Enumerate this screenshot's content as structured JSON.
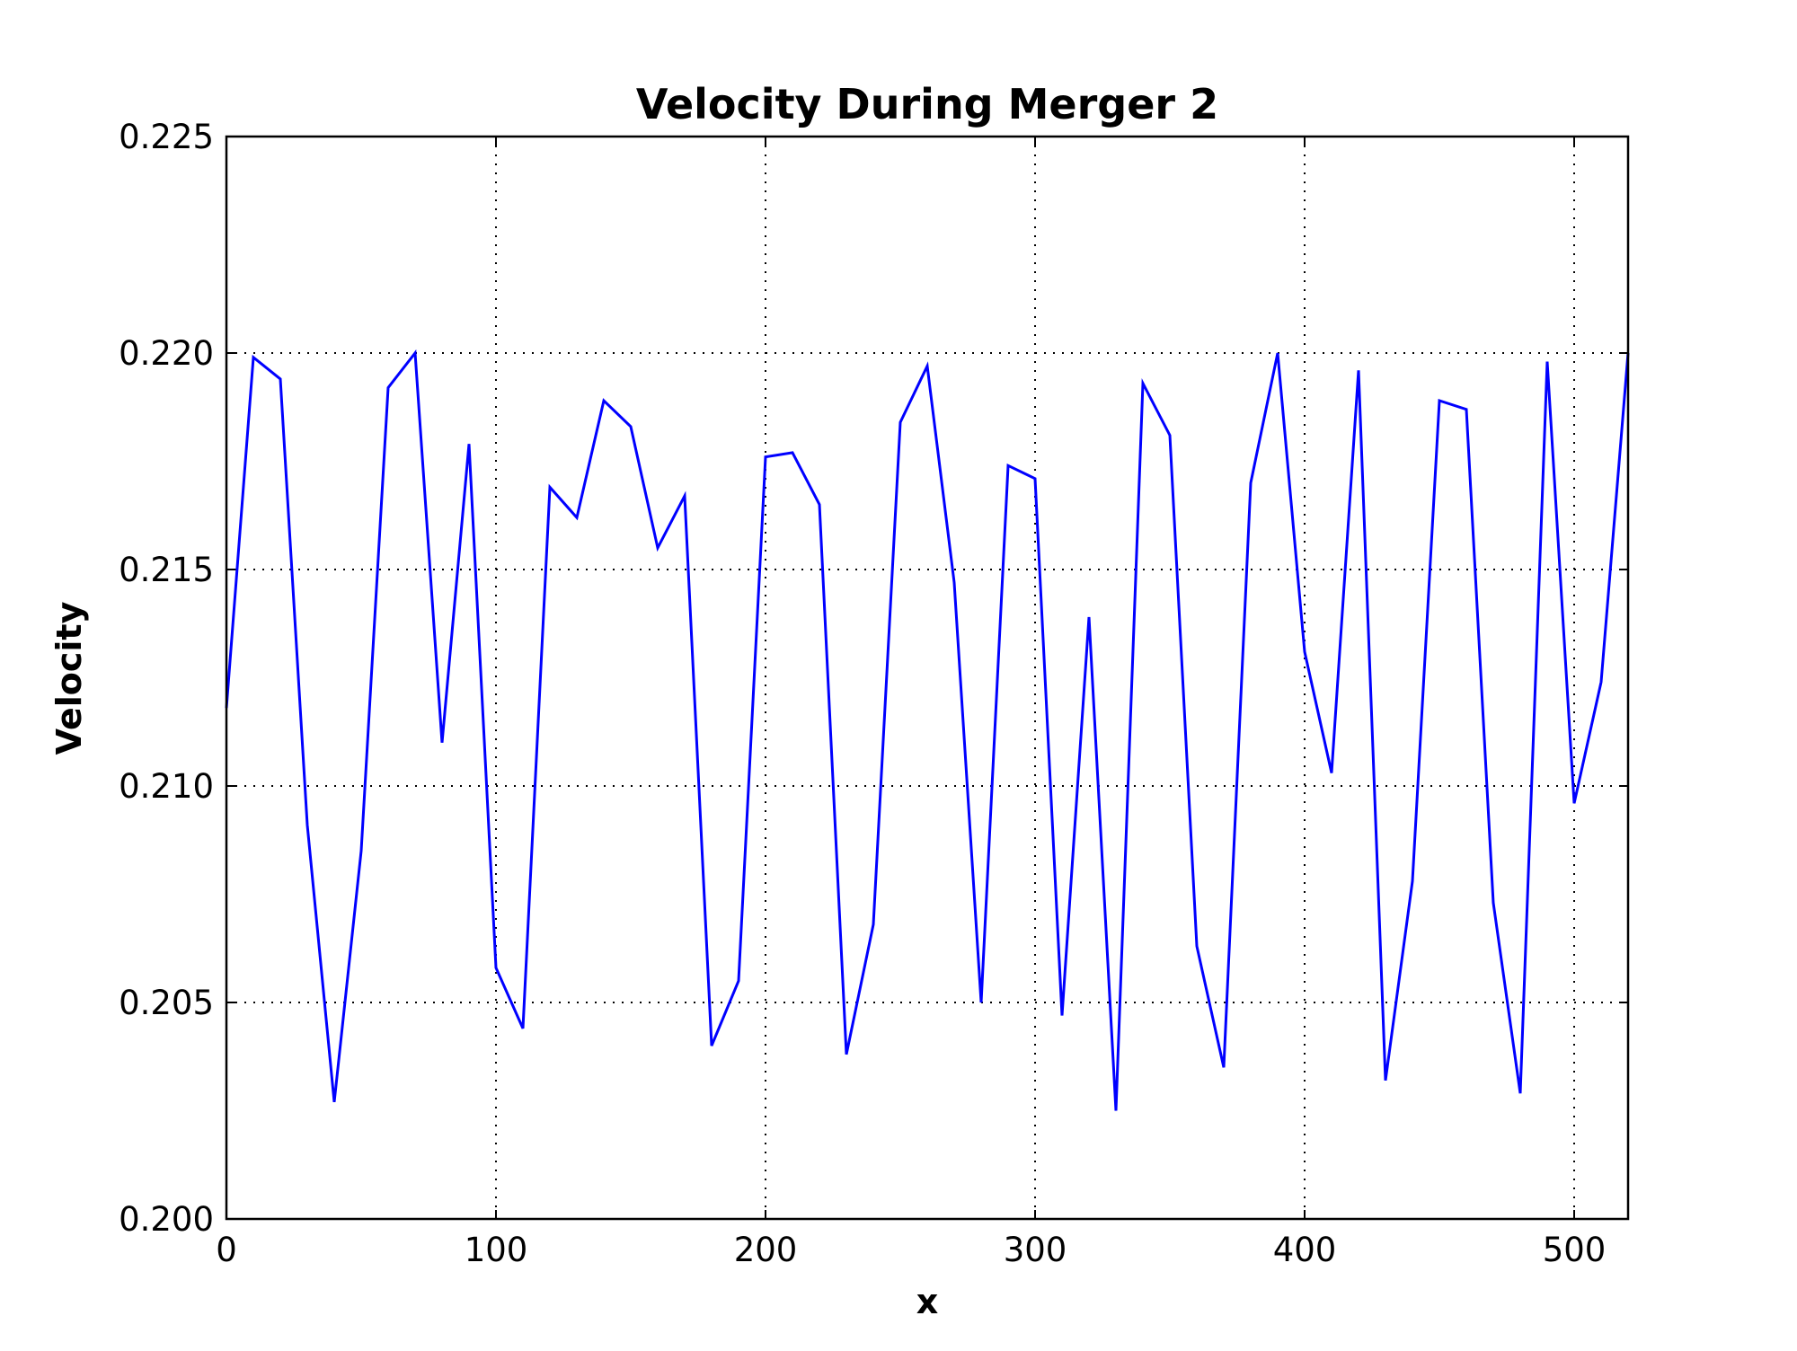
{
  "chart_data": {
    "type": "line",
    "title": "Velocity During Merger 2",
    "xlabel": "x",
    "ylabel": "Velocity",
    "xlim": [
      0,
      520
    ],
    "ylim": [
      0.2,
      0.225
    ],
    "xticks": [
      0,
      100,
      200,
      300,
      400,
      500
    ],
    "xtick_labels": [
      "0",
      "100",
      "200",
      "300",
      "400",
      "500"
    ],
    "yticks": [
      0.2,
      0.205,
      0.21,
      0.215,
      0.22,
      0.225
    ],
    "ytick_labels": [
      "0.200",
      "0.205",
      "0.210",
      "0.215",
      "0.220",
      "0.225"
    ],
    "grid": true,
    "series": [
      {
        "color": "#0000ff",
        "x": [
          0,
          10,
          20,
          30,
          40,
          50,
          60,
          70,
          80,
          90,
          100,
          110,
          120,
          130,
          140,
          150,
          160,
          170,
          180,
          190,
          200,
          210,
          220,
          230,
          240,
          250,
          260,
          270,
          280,
          290,
          300,
          310,
          320,
          330,
          340,
          350,
          360,
          370,
          380,
          390,
          400,
          410,
          420,
          430,
          440,
          450,
          460,
          470,
          480,
          490,
          500,
          510,
          520
        ],
        "y": [
          0.2118,
          0.2199,
          0.2194,
          0.2091,
          0.2027,
          0.2085,
          0.2192,
          0.22,
          0.211,
          0.2179,
          0.2058,
          0.2044,
          0.2169,
          0.2162,
          0.2189,
          0.2183,
          0.2155,
          0.2167,
          0.204,
          0.2055,
          0.2176,
          0.2177,
          0.2165,
          0.2038,
          0.2068,
          0.2184,
          0.2197,
          0.2147,
          0.205,
          0.2174,
          0.2171,
          0.2047,
          0.2139,
          0.2025,
          0.2193,
          0.2181,
          0.2063,
          0.2035,
          0.217,
          0.22,
          0.2131,
          0.2103,
          0.2196,
          0.2032,
          0.2078,
          0.2189,
          0.2187,
          0.2073,
          0.2029,
          0.2198,
          0.2096,
          0.2124,
          0.22
        ]
      }
    ]
  }
}
